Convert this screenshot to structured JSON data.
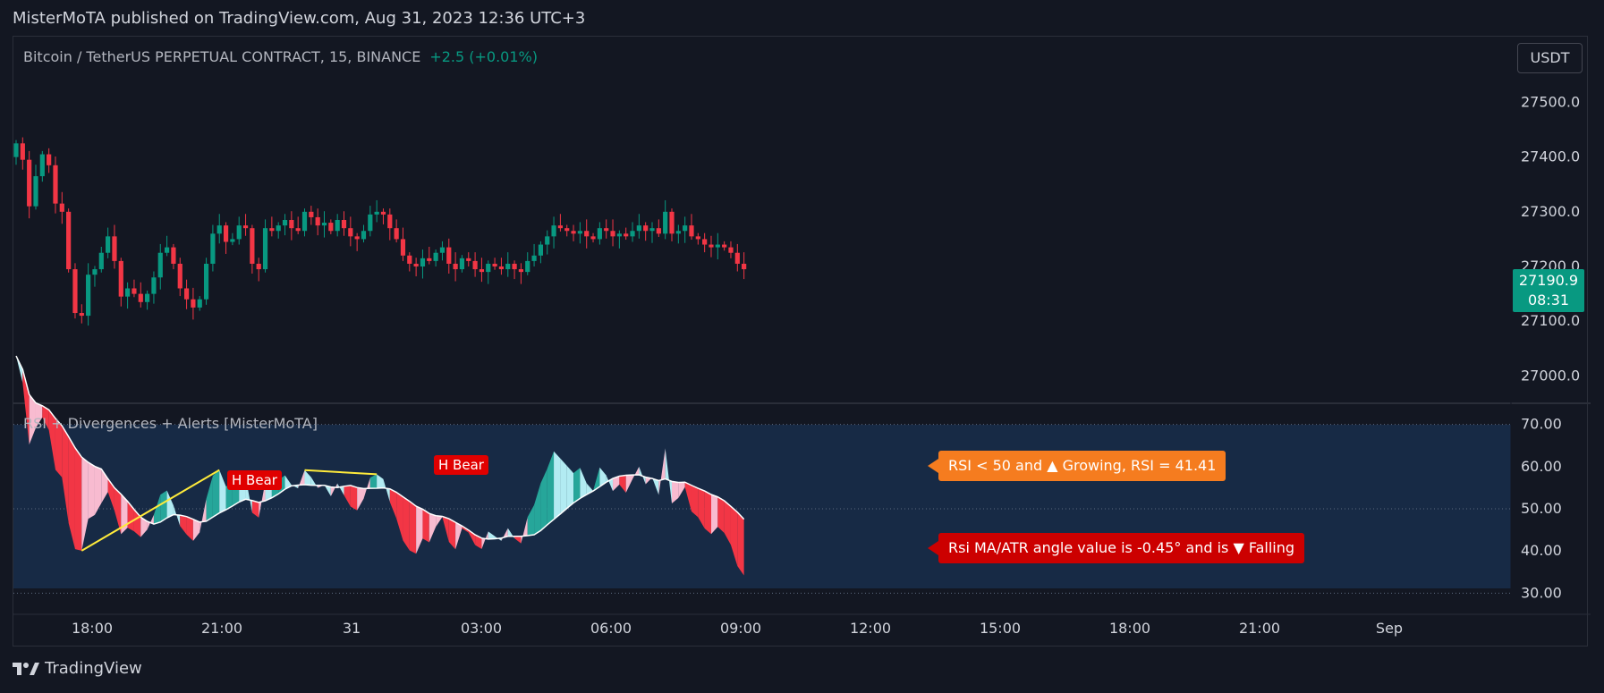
{
  "publisher": "MisterMoTA published on TradingView.com, Aug 31, 2023 12:36 UTC+3",
  "symbol": "Bitcoin / TetherUS PERPETUAL CONTRACT, 15, BINANCE",
  "change": "+2.5 (+0.01%)",
  "currency_button": "USDT",
  "last_price": "27190.9",
  "countdown": "08:31",
  "indicator_title": "RSI + Divergences + Alerts [MisterMoTA]",
  "labels": {
    "rsi_status": "RSI < 50 and ▲ Growing, RSI = 41.41",
    "angle_status": "Rsi MA/ATR angle value is -0.45° and is ▼  Falling",
    "bear_1": "H Bear",
    "bear_2": "H Bear"
  },
  "brand": "TradingView",
  "colors": {
    "background": "#131722",
    "up": "#089981",
    "down": "#f23645",
    "rsi_band": "#172a45",
    "rsi_up_fill": "#26a69a",
    "rsi_light_fill": "#b2ebf2",
    "rsi_down_fill": "#f23645",
    "rsi_pink_fill": "#f8bbd0",
    "divergence": "#ffeb3b",
    "orange_label": "#f57c1f",
    "red_label": "#cc0000"
  },
  "chart_data": [
    {
      "type": "candlestick",
      "price_ticks": [
        27000.0,
        27100.0,
        27200.0,
        27300.0,
        27400.0,
        27500.0
      ],
      "price_tick_labels": [
        "27000.0",
        "27100.0",
        "27200.0",
        "27300.0",
        "27400.0",
        "27500.0"
      ],
      "time_ticks": [
        "18:00",
        "21:00",
        "31",
        "03:00",
        "06:00",
        "09:00",
        "12:00",
        "15:00",
        "18:00",
        "21:00",
        "Sep"
      ],
      "ylim": [
        26950,
        27620
      ],
      "close": [
        27425,
        27395,
        27310,
        27365,
        27405,
        27385,
        27315,
        27300,
        27195,
        27115,
        27110,
        27185,
        27195,
        27225,
        27255,
        27210,
        27145,
        27160,
        27150,
        27135,
        27150,
        27180,
        27225,
        27235,
        27205,
        27160,
        27140,
        27125,
        27140,
        27205,
        27260,
        27275,
        27245,
        27250,
        27275,
        27270,
        27205,
        27195,
        27270,
        27265,
        27275,
        27285,
        27270,
        27265,
        27300,
        27290,
        27275,
        27280,
        27265,
        27285,
        27270,
        27255,
        27250,
        27265,
        27295,
        27300,
        27295,
        27270,
        27250,
        27220,
        27205,
        27200,
        27215,
        27210,
        27225,
        27235,
        27205,
        27195,
        27215,
        27210,
        27195,
        27190,
        27205,
        27200,
        27195,
        27205,
        27195,
        27190,
        27210,
        27220,
        27240,
        27255,
        27275,
        27270,
        27265,
        27260,
        27265,
        27255,
        27250,
        27270,
        27265,
        27255,
        27260,
        27255,
        27265,
        27275,
        27265,
        27270,
        27260,
        27300,
        27260,
        27265,
        27275,
        27255,
        27250,
        27240,
        27235,
        27240,
        27235,
        27225,
        27205,
        27195
      ],
      "rsi_ylim": [
        25,
        75
      ],
      "rsi_ticks": [
        30.0,
        40.0,
        50.0,
        60.0,
        70.0
      ],
      "rsi_tick_labels": [
        "30.00",
        "40.00",
        "50.00",
        "60.00",
        "70.00"
      ],
      "rsi_bands": [
        30,
        50,
        70
      ]
    }
  ]
}
